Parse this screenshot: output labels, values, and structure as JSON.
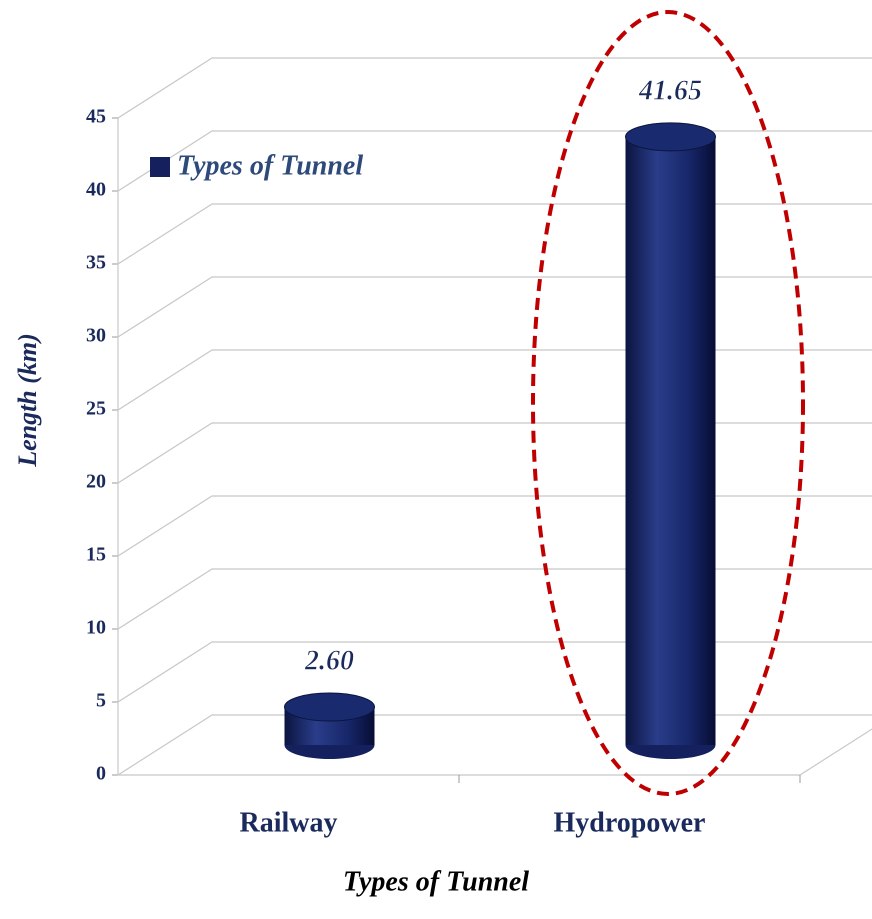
{
  "chart_data": {
    "type": "bar",
    "x_label": "Types of Tunnel",
    "y_label": "Length (km)",
    "categories": [
      "Railway",
      "Hydropower"
    ],
    "series": [
      {
        "name": "Types of Tunnel",
        "color": "#14215e",
        "values": [
          2.6,
          41.65
        ],
        "value_labels": [
          "2.60",
          "41.65"
        ]
      }
    ],
    "ylim": [
      0,
      45
    ],
    "yticks": [
      0,
      5,
      10,
      15,
      20,
      25,
      30,
      35,
      40,
      45
    ],
    "grid": true,
    "legend": "upper left"
  }
}
